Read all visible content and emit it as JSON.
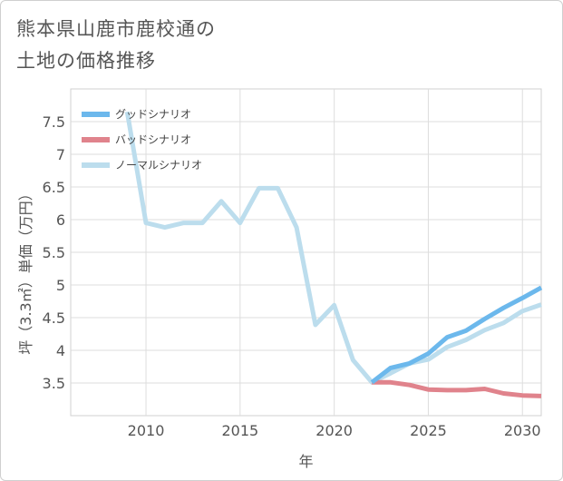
{
  "title_lines": [
    "熊本県山鹿市鹿校通の",
    "土地の価格推移"
  ],
  "chart_data": {
    "type": "line",
    "xlabel": "年",
    "ylabel": "坪（3.3㎡）単価（万円）",
    "xlim": [
      2006,
      2031
    ],
    "ylim": [
      3,
      8
    ],
    "xticks": [
      2010,
      2015,
      2020,
      2025,
      2030
    ],
    "yticks": [
      3.5,
      4,
      4.5,
      5,
      5.5,
      6,
      6.5,
      7,
      7.5
    ],
    "ytick_labels": [
      "3.5",
      "4",
      "4.5",
      "5",
      "5.5",
      "6",
      "6.5",
      "7",
      "7.5"
    ],
    "grid": true,
    "legend_position": "top-left",
    "series": [
      {
        "name": "グッドシナリオ",
        "color": "#6cb8ec",
        "x": [
          2022,
          2023,
          2024,
          2025,
          2026,
          2027,
          2028,
          2029,
          2030,
          2031
        ],
        "y": [
          3.51,
          3.73,
          3.8,
          3.95,
          4.2,
          4.3,
          4.48,
          4.65,
          4.8,
          4.96
        ]
      },
      {
        "name": "バッドシナリオ",
        "color": "#e0838c",
        "x": [
          2022,
          2023,
          2024,
          2025,
          2026,
          2027,
          2028,
          2029,
          2030,
          2031
        ],
        "y": [
          3.51,
          3.51,
          3.47,
          3.4,
          3.39,
          3.39,
          3.41,
          3.34,
          3.31,
          3.3
        ]
      },
      {
        "name": "ノーマルシナリオ",
        "color": "#bcdded",
        "x": [
          2009,
          2010,
          2011,
          2012,
          2013,
          2014,
          2015,
          2016,
          2017,
          2018,
          2019,
          2020,
          2021,
          2022,
          2023,
          2024,
          2025,
          2026,
          2027,
          2028,
          2029,
          2030,
          2031
        ],
        "y": [
          7.65,
          5.95,
          5.88,
          5.95,
          5.95,
          6.28,
          5.95,
          6.48,
          6.48,
          5.88,
          4.39,
          4.69,
          3.85,
          3.51,
          3.65,
          3.8,
          3.86,
          4.05,
          4.16,
          4.31,
          4.42,
          4.6,
          4.7
        ]
      }
    ]
  }
}
